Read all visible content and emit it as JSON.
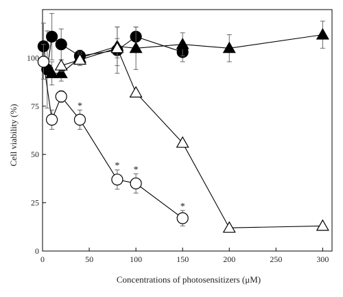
{
  "chart_data": {
    "type": "scatter",
    "xlabel": "Concentrations of photosensitizers (μM)",
    "ylabel": "Cell viability (%)",
    "xlim": [
      0,
      310
    ],
    "ylim": [
      0,
      125
    ],
    "xticks": [
      0,
      50,
      100,
      150,
      200,
      250,
      300
    ],
    "yticks": [
      0,
      25,
      50,
      75,
      100
    ],
    "grid": false,
    "legend": "none",
    "series": [
      {
        "marker": "filled-circle",
        "color": "#000000",
        "points": [
          {
            "x": 1,
            "y": 106,
            "err": 12
          },
          {
            "x": 5,
            "y": 94,
            "err": 20
          },
          {
            "x": 10,
            "y": 111,
            "err": 12
          },
          {
            "x": 20,
            "y": 107,
            "err": 8
          },
          {
            "x": 40,
            "y": 101,
            "err": 3
          },
          {
            "x": 80,
            "y": 104,
            "err": 12
          },
          {
            "x": 100,
            "y": 111,
            "err": 5
          },
          {
            "x": 150,
            "y": 103,
            "err": 5
          }
        ]
      },
      {
        "marker": "filled-triangle",
        "color": "#000000",
        "points": [
          {
            "x": 10,
            "y": 92,
            "err": 6
          },
          {
            "x": 20,
            "y": 92,
            "err": 4
          },
          {
            "x": 40,
            "y": 100,
            "err": 3
          },
          {
            "x": 80,
            "y": 106,
            "err": 10
          },
          {
            "x": 100,
            "y": 105,
            "err": 11
          },
          {
            "x": 150,
            "y": 107,
            "err": 6
          },
          {
            "x": 200,
            "y": 105,
            "err": 7
          },
          {
            "x": 300,
            "y": 112,
            "err": 7
          }
        ]
      },
      {
        "marker": "open-triangle",
        "color": "#000000",
        "points": [
          {
            "x": 20,
            "y": 96,
            "err": 3
          },
          {
            "x": 40,
            "y": 99,
            "err": 3
          },
          {
            "x": 80,
            "y": 105,
            "err": 5
          },
          {
            "x": 100,
            "y": 82,
            "err": 0
          },
          {
            "x": 150,
            "y": 56,
            "err": 0
          },
          {
            "x": 200,
            "y": 12,
            "err": 0
          },
          {
            "x": 300,
            "y": 13,
            "err": 0
          }
        ]
      },
      {
        "marker": "open-circle",
        "color": "#000000",
        "points": [
          {
            "x": 1,
            "y": 98,
            "err": 9
          },
          {
            "x": 10,
            "y": 68,
            "err": 5
          },
          {
            "x": 20,
            "y": 80,
            "err": 3
          },
          {
            "x": 40,
            "y": 68,
            "err": 5,
            "annotation": "*"
          },
          {
            "x": 80,
            "y": 37,
            "err": 5,
            "annotation": "*"
          },
          {
            "x": 100,
            "y": 35,
            "err": 5,
            "annotation": "*"
          },
          {
            "x": 150,
            "y": 17,
            "err": 4,
            "annotation": "*"
          }
        ]
      }
    ]
  }
}
